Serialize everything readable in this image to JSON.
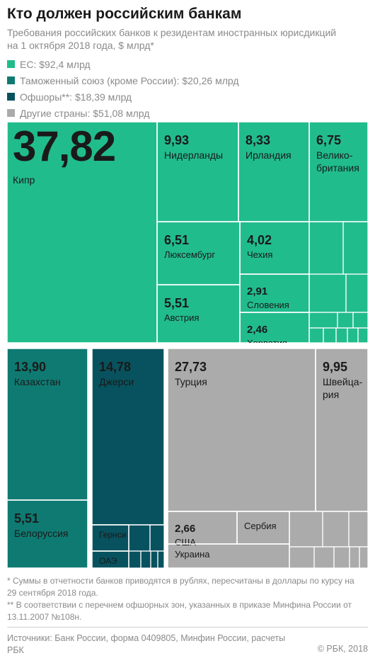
{
  "title": "Кто должен российским банкам",
  "subtitle": "Требования российских банков к резидентам иностранных юрисдикций на 1 октября 2018 года, $ млрд*",
  "legend": [
    {
      "label": "ЕС: $92,4 млрд",
      "color": "#21bc8c"
    },
    {
      "label": "Таможенный союз (кроме России): $20,26 млрд",
      "color": "#0f7a72"
    },
    {
      "label": "Офшоры**: $18,39 млрд",
      "color": "#07525e"
    },
    {
      "label": "Другие страны: $51,08 млрд",
      "color": "#ababab"
    }
  ],
  "chart_data": {
    "type": "treemap",
    "unit": "$ млрд",
    "groups": [
      {
        "name": "ЕС",
        "total": 92.4,
        "color": "#21bc8c",
        "items": [
          {
            "label": "Кипр",
            "value": 37.82,
            "value_text": "37,82"
          },
          {
            "label": "Нидерланды",
            "value": 9.93,
            "value_text": "9,93"
          },
          {
            "label": "Ирландия",
            "value": 8.33,
            "value_text": "8,33"
          },
          {
            "label": "Велико-британия",
            "label_lines": [
              "Велико-",
              "британия"
            ],
            "value": 6.75,
            "value_text": "6,75"
          },
          {
            "label": "Люксембург",
            "value": 6.51,
            "value_text": "6,51"
          },
          {
            "label": "Австрия",
            "value": 5.51,
            "value_text": "5,51"
          },
          {
            "label": "Чехия",
            "value": 4.02,
            "value_text": "4,02"
          },
          {
            "label": "Словения",
            "value": 2.91,
            "value_text": "2,91"
          },
          {
            "label": "Хорватия",
            "value": 2.46,
            "value_text": "2,46"
          }
        ]
      },
      {
        "name": "Таможенный союз (кроме России)",
        "total": 20.26,
        "color": "#0f7a72",
        "items": [
          {
            "label": "Казахстан",
            "value": 13.9,
            "value_text": "13,90"
          },
          {
            "label": "Белоруссия",
            "value": 5.51,
            "value_text": "5,51"
          }
        ]
      },
      {
        "name": "Офшоры",
        "total": 18.39,
        "color": "#07525e",
        "items": [
          {
            "label": "Джерси",
            "value": 14.78,
            "value_text": "14,78"
          },
          {
            "label": "Гернси",
            "value": null,
            "value_text": ""
          },
          {
            "label": "ОАЭ",
            "value": null,
            "value_text": ""
          }
        ]
      },
      {
        "name": "Другие страны",
        "total": 51.08,
        "color": "#ababab",
        "items": [
          {
            "label": "Турция",
            "value": 27.73,
            "value_text": "27,73"
          },
          {
            "label": "Швейца-рия",
            "label_lines": [
              "Швейца-",
              "рия"
            ],
            "value": 9.95,
            "value_text": "9,95"
          },
          {
            "label": "США",
            "value": 2.66,
            "value_text": "2,66"
          },
          {
            "label": "Сербия",
            "value": null,
            "value_text": ""
          },
          {
            "label": "Украина",
            "value": null,
            "value_text": ""
          }
        ]
      }
    ]
  },
  "footnotes": [
    "* Суммы в отчетности банков приводятся в рублях, пересчитаны в доллары по курсу на 29 сентября 2018 года.",
    "** В соответствии с перечнем офшорных зон, указанных в приказе Минфина России от 13.11.2007 №108н."
  ],
  "sources": "Источники: Банк России, форма 0409805, Минфин России, расчеты РБК",
  "copyright": "© РБК, 2018"
}
